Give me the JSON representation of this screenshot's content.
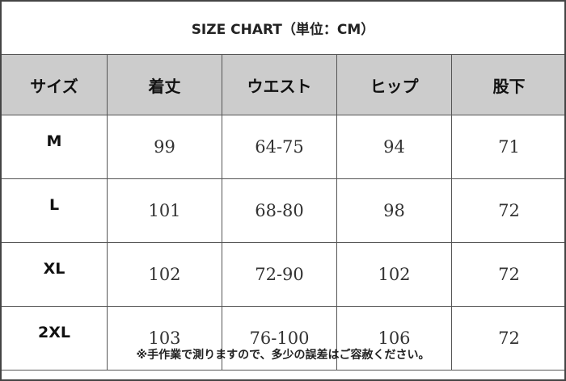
{
  "title": "SIZE CHART（単位：CM）",
  "table": {
    "headers": [
      "サイズ",
      "着丈",
      "ウエスト",
      "ヒップ",
      "股下"
    ],
    "rows": [
      [
        "M",
        "99",
        "64-75",
        "94",
        "71"
      ],
      [
        "L",
        "101",
        "68-80",
        "98",
        "72"
      ],
      [
        "XL",
        "102",
        "72-90",
        "102",
        "72"
      ],
      [
        "2XL",
        "103",
        "76-100",
        "106",
        "72"
      ]
    ]
  },
  "footer": "※手作業で測りますので、多少の誤差はご容赦ください。",
  "colors": {
    "header_bg": "#cccccc",
    "border": "#555555"
  }
}
